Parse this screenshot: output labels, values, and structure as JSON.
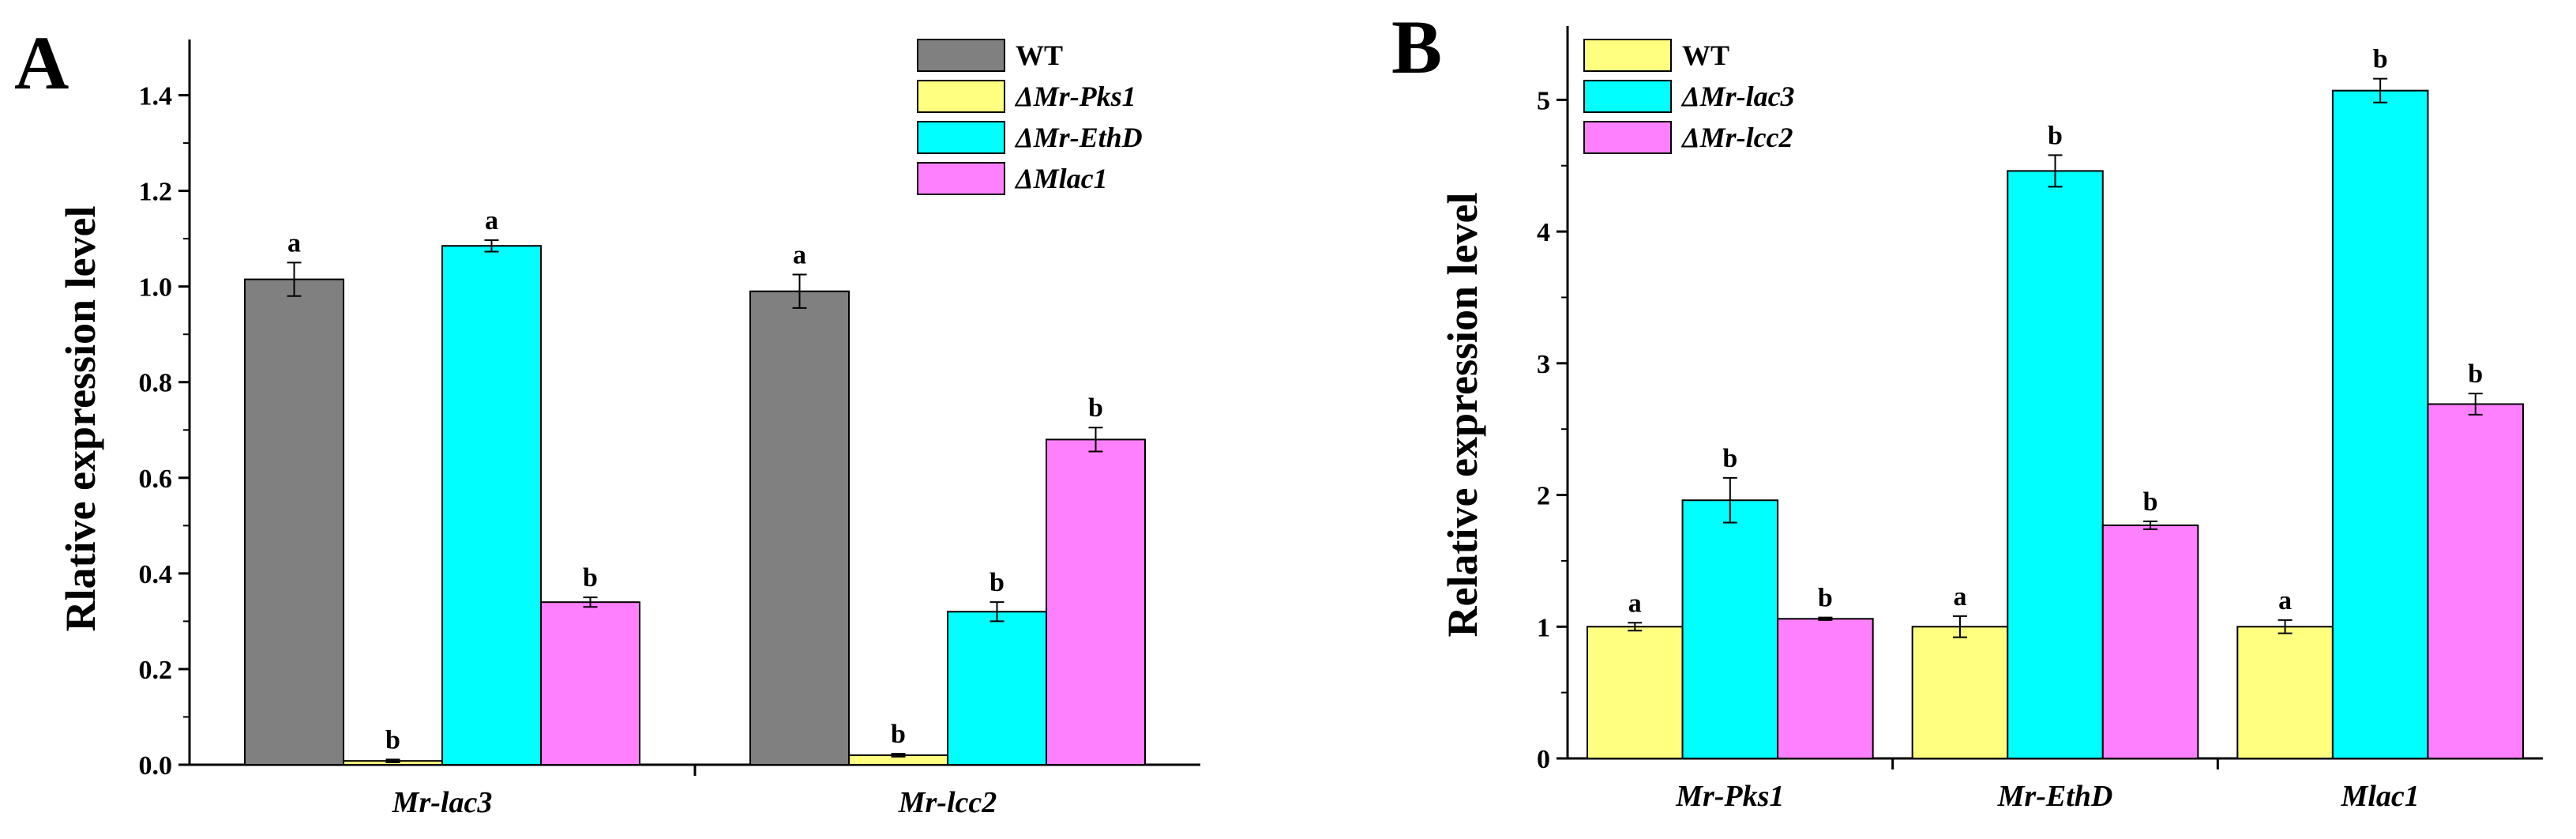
{
  "chart_data": [
    {
      "panel": "A",
      "type": "bar",
      "ylabel": "Rlative expression level",
      "xlabel": "",
      "ylim": [
        0,
        1.5
      ],
      "yticks": [
        "0.0",
        "0.2",
        "0.4",
        "0.6",
        "0.8",
        "1.0",
        "1.2",
        "1.4"
      ],
      "categories": [
        "Mr-lac3",
        "Mr-lcc2"
      ],
      "legend_position": "top-right",
      "series": [
        {
          "name": "WT",
          "color": "#808080",
          "values": [
            1.015,
            0.99
          ],
          "errors": [
            0.035,
            0.035
          ],
          "labels": [
            "a",
            "a"
          ]
        },
        {
          "name": "ΔMr-Pks1",
          "color": "#ffff80",
          "values": [
            0.008,
            0.02
          ],
          "errors": [
            0.003,
            0.003
          ],
          "labels": [
            "b",
            "b"
          ]
        },
        {
          "name": "ΔMr-EthD",
          "color": "#00ffff",
          "values": [
            1.085,
            0.32
          ],
          "errors": [
            0.012,
            0.02
          ],
          "labels": [
            "a",
            "b"
          ]
        },
        {
          "name": "ΔMlac1",
          "color": "#ff80ff",
          "values": [
            0.34,
            0.68
          ],
          "errors": [
            0.01,
            0.025
          ],
          "labels": [
            "b",
            "b"
          ]
        }
      ]
    },
    {
      "panel": "B",
      "type": "bar",
      "ylabel": "Relative expression level",
      "xlabel": "",
      "ylim": [
        0,
        5.5
      ],
      "yticks": [
        "0",
        "1",
        "2",
        "3",
        "4",
        "5"
      ],
      "categories": [
        "Mr-Pks1",
        "Mr-EthD",
        "Mlac1"
      ],
      "legend_position": "top-left",
      "series": [
        {
          "name": "WT",
          "color": "#ffff80",
          "values": [
            1.0,
            1.0,
            1.0
          ],
          "errors": [
            0.03,
            0.08,
            0.05
          ],
          "labels": [
            "a",
            "a",
            "a"
          ]
        },
        {
          "name": "ΔMr-lac3",
          "color": "#00ffff",
          "values": [
            1.96,
            4.46,
            5.07
          ],
          "errors": [
            0.17,
            0.12,
            0.09
          ],
          "labels": [
            "b",
            "b",
            "b"
          ]
        },
        {
          "name": "ΔMr-lcc2",
          "color": "#ff80ff",
          "values": [
            1.06,
            1.77,
            2.69
          ],
          "errors": [
            0.01,
            0.03,
            0.08
          ],
          "labels": [
            "b",
            "b",
            "b"
          ]
        }
      ]
    }
  ]
}
